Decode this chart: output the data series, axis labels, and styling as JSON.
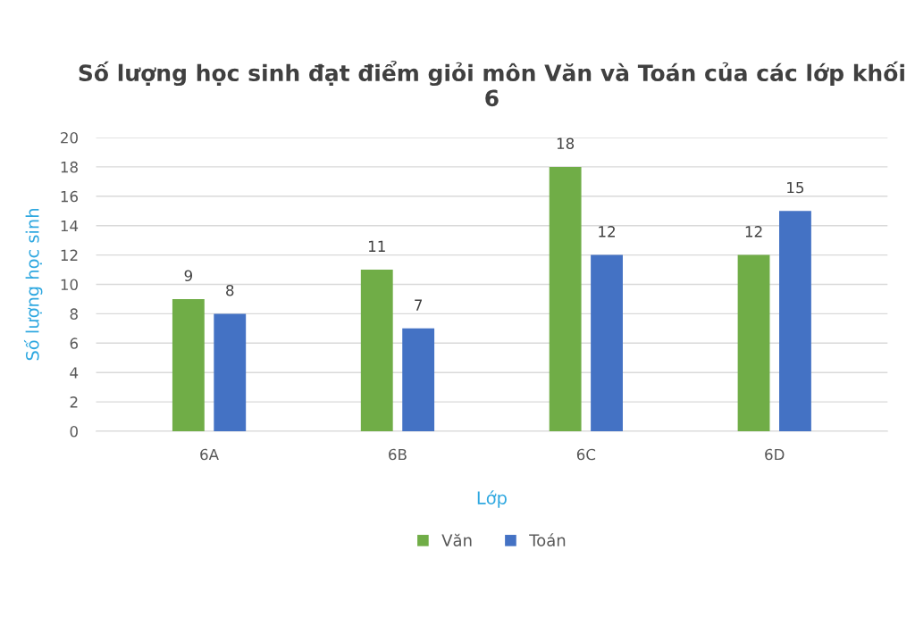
{
  "chart_data": {
    "type": "bar",
    "title": "Số lượng học sinh đạt điểm giỏi môn Văn và Toán của các lớp khối 6",
    "xlabel": "Lớp",
    "ylabel": "Số lượng học sinh",
    "categories": [
      "6A",
      "6B",
      "6C",
      "6D"
    ],
    "series": [
      {
        "name": "Văn",
        "color": "#70ad47",
        "values": [
          9,
          11,
          18,
          12
        ]
      },
      {
        "name": "Toán",
        "color": "#4472c4",
        "values": [
          8,
          7,
          12,
          15
        ]
      }
    ],
    "ylim": [
      0,
      20
    ],
    "yticks": [
      0,
      2,
      4,
      6,
      8,
      10,
      12,
      14,
      16,
      18,
      20
    ],
    "grid": "y",
    "legend": "bottom",
    "data_labels": true
  }
}
